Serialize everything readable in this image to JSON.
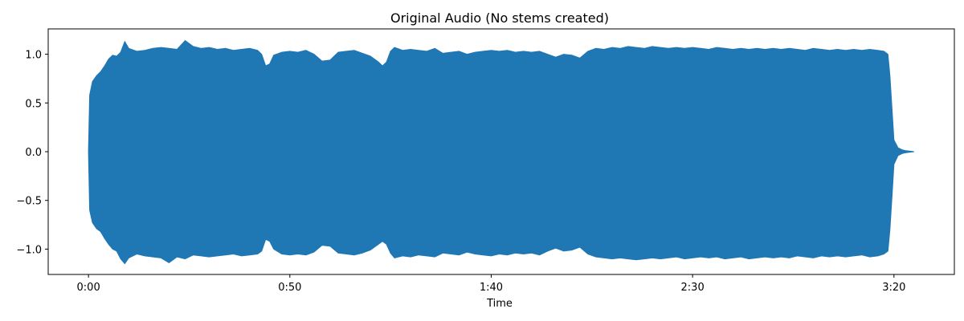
{
  "chart_data": {
    "type": "area",
    "title": "Original Audio (No stems created)",
    "xlabel": "Time",
    "ylabel": "",
    "x_unit": "seconds",
    "xlim": [
      -10,
      215
    ],
    "ylim": [
      -1.26,
      1.26
    ],
    "x_ticks": [
      {
        "value": 0,
        "label": "0:00"
      },
      {
        "value": 50,
        "label": "0:50"
      },
      {
        "value": 100,
        "label": "1:40"
      },
      {
        "value": 150,
        "label": "2:30"
      },
      {
        "value": 200,
        "label": "3:20"
      }
    ],
    "y_ticks": [
      {
        "value": 1.0,
        "label": "1.0"
      },
      {
        "value": 0.5,
        "label": "0.5"
      },
      {
        "value": 0.0,
        "label": "0.0"
      },
      {
        "value": -0.5,
        "label": "−0.5"
      },
      {
        "value": -1.0,
        "label": "−1.0"
      }
    ],
    "grid": false,
    "color": "#1f77b4",
    "series": [
      {
        "x": [
          0,
          0.3,
          1,
          2,
          3,
          4,
          5,
          6,
          7,
          8,
          9,
          10,
          12,
          14,
          16,
          18,
          20,
          22,
          24,
          26,
          28,
          30,
          32,
          34,
          36,
          38,
          40,
          42,
          43,
          44,
          45,
          46,
          48,
          50,
          52,
          54,
          56,
          58,
          60,
          62,
          64,
          66,
          68,
          70,
          72,
          73,
          74,
          75,
          76,
          78,
          80,
          82,
          84,
          86,
          88,
          90,
          92,
          94,
          96,
          98,
          100,
          102,
          104,
          106,
          108,
          110,
          112,
          114,
          116,
          118,
          120,
          122,
          124,
          126,
          128,
          130,
          132,
          134,
          136,
          138,
          140,
          142,
          144,
          146,
          148,
          150,
          152,
          154,
          156,
          158,
          160,
          162,
          164,
          166,
          168,
          170,
          172,
          174,
          176,
          178,
          180,
          182,
          184,
          186,
          188,
          190,
          192,
          194,
          196,
          197.5,
          198.5,
          199,
          199.5,
          200,
          201,
          202,
          203,
          204,
          205
        ],
        "upper": [
          0,
          0.58,
          0.72,
          0.78,
          0.82,
          0.88,
          0.95,
          0.99,
          0.98,
          1.02,
          1.13,
          1.06,
          1.03,
          1.04,
          1.06,
          1.07,
          1.06,
          1.05,
          1.14,
          1.08,
          1.06,
          1.07,
          1.05,
          1.06,
          1.04,
          1.05,
          1.06,
          1.04,
          1.0,
          0.88,
          0.9,
          0.99,
          1.02,
          1.03,
          1.02,
          1.04,
          1.0,
          0.93,
          0.94,
          1.02,
          1.03,
          1.04,
          1.01,
          0.98,
          0.92,
          0.88,
          0.92,
          1.03,
          1.07,
          1.04,
          1.05,
          1.04,
          1.03,
          1.06,
          1.01,
          1.02,
          1.03,
          1.0,
          1.02,
          1.03,
          1.04,
          1.03,
          1.04,
          1.02,
          1.03,
          1.02,
          1.03,
          1.0,
          0.97,
          1.0,
          0.99,
          0.96,
          1.03,
          1.06,
          1.05,
          1.07,
          1.06,
          1.08,
          1.07,
          1.06,
          1.08,
          1.07,
          1.06,
          1.07,
          1.06,
          1.07,
          1.06,
          1.05,
          1.07,
          1.06,
          1.05,
          1.06,
          1.05,
          1.06,
          1.05,
          1.06,
          1.05,
          1.06,
          1.05,
          1.04,
          1.06,
          1.05,
          1.04,
          1.05,
          1.04,
          1.05,
          1.04,
          1.05,
          1.04,
          1.03,
          1.0,
          0.78,
          0.45,
          0.12,
          0.04,
          0.02,
          0.01,
          0.005,
          0
        ],
        "lower": [
          0,
          -0.6,
          -0.73,
          -0.79,
          -0.82,
          -0.89,
          -0.95,
          -1.0,
          -1.02,
          -1.1,
          -1.15,
          -1.09,
          -1.05,
          -1.07,
          -1.08,
          -1.09,
          -1.14,
          -1.08,
          -1.1,
          -1.06,
          -1.07,
          -1.08,
          -1.07,
          -1.06,
          -1.05,
          -1.07,
          -1.06,
          -1.05,
          -1.02,
          -0.9,
          -0.92,
          -1.0,
          -1.05,
          -1.06,
          -1.05,
          -1.06,
          -1.03,
          -0.96,
          -0.97,
          -1.04,
          -1.05,
          -1.06,
          -1.04,
          -1.01,
          -0.95,
          -0.92,
          -0.95,
          -1.04,
          -1.09,
          -1.07,
          -1.08,
          -1.06,
          -1.07,
          -1.08,
          -1.04,
          -1.05,
          -1.06,
          -1.03,
          -1.05,
          -1.06,
          -1.07,
          -1.05,
          -1.06,
          -1.04,
          -1.05,
          -1.04,
          -1.06,
          -1.02,
          -0.99,
          -1.02,
          -1.01,
          -0.98,
          -1.05,
          -1.08,
          -1.09,
          -1.1,
          -1.09,
          -1.1,
          -1.11,
          -1.1,
          -1.09,
          -1.1,
          -1.09,
          -1.08,
          -1.1,
          -1.09,
          -1.08,
          -1.09,
          -1.08,
          -1.1,
          -1.09,
          -1.08,
          -1.1,
          -1.09,
          -1.08,
          -1.09,
          -1.08,
          -1.09,
          -1.07,
          -1.08,
          -1.09,
          -1.07,
          -1.08,
          -1.07,
          -1.08,
          -1.07,
          -1.06,
          -1.08,
          -1.07,
          -1.05,
          -1.02,
          -0.8,
          -0.47,
          -0.13,
          -0.04,
          -0.02,
          -0.01,
          -0.005,
          0
        ]
      }
    ]
  }
}
